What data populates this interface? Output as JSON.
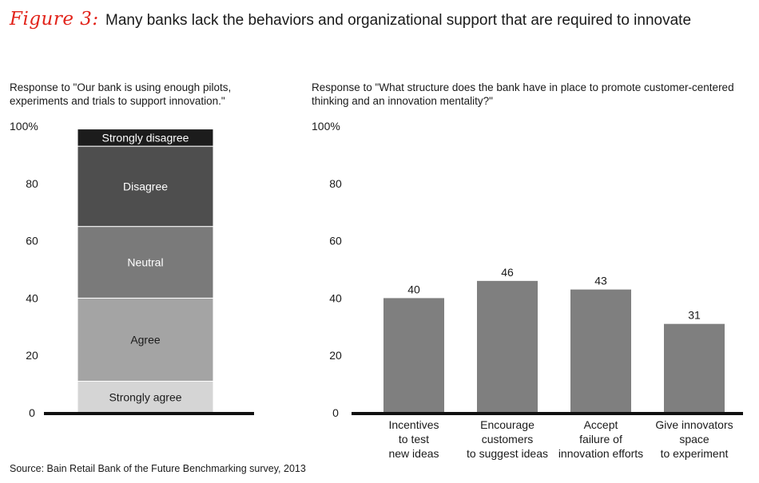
{
  "figure": {
    "label": "Figure 3:",
    "title": "Many banks lack the behaviors and organizational support that are required to innovate",
    "source": "Source: Bain Retail Bank of the Future Benchmarking survey, 2013"
  },
  "chart_data": [
    {
      "type": "bar",
      "stacked": true,
      "title": "Response to \"Our bank is using enough pilots, experiments and trials to support innovation.\"",
      "ylim": [
        0,
        100
      ],
      "yticks": [
        "0",
        "20",
        "40",
        "60",
        "80",
        "100%"
      ],
      "series": [
        {
          "name": "Strongly agree",
          "value": 11,
          "color": "#d5d5d5",
          "text_color": "#1a1a1a"
        },
        {
          "name": "Agree",
          "value": 29,
          "color": "#a4a4a4",
          "text_color": "#1a1a1a"
        },
        {
          "name": "Neutral",
          "value": 25,
          "color": "#7a7a7a",
          "text_color": "#ffffff"
        },
        {
          "name": "Disagree",
          "value": 28,
          "color": "#4e4e4e",
          "text_color": "#ffffff"
        },
        {
          "name": "Strongly disagree",
          "value": 6,
          "color": "#1c1c1c",
          "text_color": "#ffffff"
        }
      ]
    },
    {
      "type": "bar",
      "title": "Response to \"What structure does the bank have in place to promote customer-centered thinking and an innovation mentality?\"",
      "ylim": [
        0,
        100
      ],
      "yticks": [
        "0",
        "20",
        "40",
        "60",
        "80",
        "100%"
      ],
      "bar_color": "#7f7f7f",
      "categories": [
        [
          "Incentives",
          "to test",
          "new ideas"
        ],
        [
          "Encourage",
          "customers",
          "to suggest ideas"
        ],
        [
          "Accept",
          "failure of",
          "innovation efforts"
        ],
        [
          "Give innovators",
          "space",
          "to experiment"
        ]
      ],
      "values": [
        40,
        46,
        43,
        31
      ]
    }
  ]
}
